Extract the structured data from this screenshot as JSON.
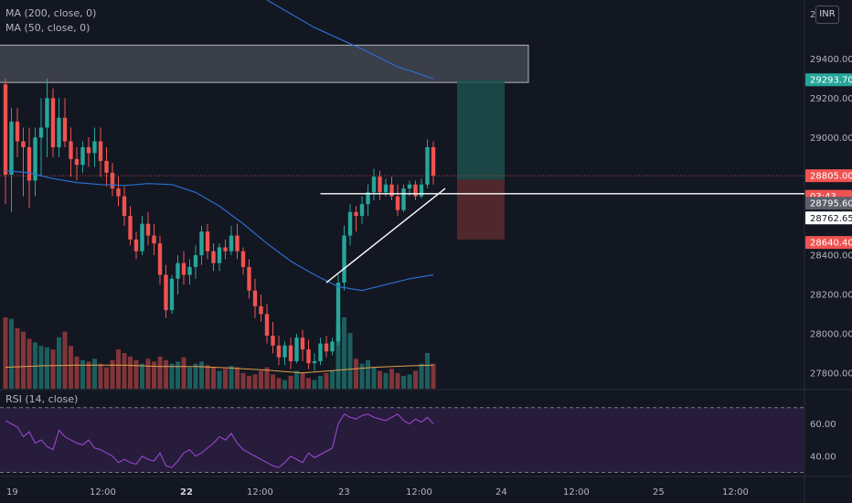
{
  "currency_label": "INR",
  "indicators": {
    "ma200": "MA (200, close, 0)",
    "ma50": "MA (50, close, 0)",
    "rsi": "RSI (14, close)"
  },
  "colors": {
    "background": "#131722",
    "up": "#26a69a",
    "down": "#ef5350",
    "ma50_line": "#2a6fcf",
    "volume_ma": "#e6a04a",
    "rsi_line": "#a24bd9",
    "rsi_band": "#2a1d3f",
    "resistance_zone": "#5d606b",
    "trendline": "#ffffff",
    "long_target": "#1e4f4c",
    "long_stop": "#5c2a2e"
  },
  "chart_data": {
    "type": "candlestick",
    "price_axis": {
      "ticks": [
        29400.0,
        29200.0,
        29000.0,
        28800.0,
        28600.0,
        28400.0,
        28200.0,
        28000.0,
        27800.0
      ],
      "top_label": "29600",
      "range": [
        27720,
        29700
      ]
    },
    "rsi_axis": {
      "ticks": [
        60.0,
        40.0
      ],
      "range": [
        28,
        80
      ],
      "band": [
        30,
        70
      ]
    },
    "x_labels": [
      "19",
      "12:00",
      "22",
      "12:00",
      "23",
      "12:00",
      "24",
      "12:00",
      "25",
      "12:00"
    ],
    "x_labels_bold": [
      false,
      false,
      true,
      false,
      false,
      false,
      false,
      false,
      false,
      false
    ],
    "price_tags": [
      {
        "text": "29293.70",
        "price": 29293.7,
        "bg": "#26a69a",
        "fg": "#ffffff"
      },
      {
        "text": "28805.00",
        "price": 28805.0,
        "bg": "#ef5350",
        "fg": "#ffffff"
      },
      {
        "text": "03:43",
        "price": 28700,
        "bg": "#ef5350",
        "fg": "#ffffff"
      },
      {
        "text": "28795.60",
        "price": 28665,
        "bg": "#5d606b",
        "fg": "#ffffff"
      },
      {
        "text": "28762.65",
        "price": 28590,
        "bg": "#ffffff",
        "fg": "#131722"
      },
      {
        "text": "28640.40",
        "price": 28465,
        "bg": "#ef5350",
        "fg": "#ffffff"
      }
    ],
    "candles": [
      [
        29270,
        29300,
        28660,
        28810
      ],
      [
        28810,
        29150,
        28620,
        29080
      ],
      [
        29080,
        29150,
        28900,
        28980
      ],
      [
        28980,
        29050,
        28700,
        28950
      ],
      [
        28950,
        29050,
        28640,
        28780
      ],
      [
        28780,
        29050,
        28700,
        29000
      ],
      [
        29000,
        29200,
        28800,
        29050
      ],
      [
        29050,
        29300,
        28900,
        29200
      ],
      [
        29200,
        29250,
        28900,
        28950
      ],
      [
        28950,
        29200,
        28900,
        29100
      ],
      [
        29100,
        29200,
        28950,
        28980
      ],
      [
        28980,
        29050,
        28800,
        28890
      ],
      [
        28890,
        28950,
        28780,
        28860
      ],
      [
        28860,
        28980,
        28820,
        28950
      ],
      [
        28950,
        29000,
        28850,
        28920
      ],
      [
        28920,
        29050,
        28850,
        28980
      ],
      [
        28980,
        29050,
        28800,
        28880
      ],
      [
        28880,
        28950,
        28750,
        28820
      ],
      [
        28820,
        28870,
        28700,
        28740
      ],
      [
        28740,
        28800,
        28650,
        28700
      ],
      [
        28700,
        28750,
        28550,
        28600
      ],
      [
        28600,
        28650,
        28450,
        28480
      ],
      [
        28480,
        28520,
        28380,
        28420
      ],
      [
        28420,
        28600,
        28400,
        28560
      ],
      [
        28560,
        28620,
        28450,
        28500
      ],
      [
        28500,
        28560,
        28400,
        28460
      ],
      [
        28460,
        28500,
        28250,
        28300
      ],
      [
        28300,
        28350,
        28080,
        28120
      ],
      [
        28120,
        28300,
        28100,
        28280
      ],
      [
        28280,
        28400,
        28200,
        28360
      ],
      [
        28360,
        28420,
        28250,
        28300
      ],
      [
        28300,
        28380,
        28250,
        28340
      ],
      [
        28340,
        28450,
        28280,
        28400
      ],
      [
        28400,
        28550,
        28350,
        28520
      ],
      [
        28520,
        28560,
        28380,
        28420
      ],
      [
        28420,
        28460,
        28320,
        28360
      ],
      [
        28360,
        28460,
        28320,
        28440
      ],
      [
        28440,
        28480,
        28380,
        28420
      ],
      [
        28420,
        28550,
        28400,
        28500
      ],
      [
        28500,
        28560,
        28380,
        28420
      ],
      [
        28420,
        28440,
        28300,
        28340
      ],
      [
        28340,
        28380,
        28180,
        28220
      ],
      [
        28220,
        28280,
        28080,
        28140
      ],
      [
        28140,
        28200,
        28060,
        28100
      ],
      [
        28100,
        28150,
        27950,
        27990
      ],
      [
        27990,
        28060,
        27900,
        27940
      ],
      [
        27940,
        27990,
        27840,
        27880
      ],
      [
        27880,
        27960,
        27840,
        27940
      ],
      [
        27940,
        27980,
        27820,
        27860
      ],
      [
        27860,
        28000,
        27850,
        27980
      ],
      [
        27980,
        28020,
        27860,
        27920
      ],
      [
        27920,
        27970,
        27820,
        27850
      ],
      [
        27850,
        27900,
        27810,
        27860
      ],
      [
        27860,
        27980,
        27840,
        27950
      ],
      [
        27950,
        27990,
        27880,
        27910
      ],
      [
        27910,
        27980,
        27890,
        27960
      ],
      [
        27960,
        28300,
        27940,
        28260
      ],
      [
        28260,
        28550,
        28220,
        28500
      ],
      [
        28500,
        28660,
        28450,
        28620
      ],
      [
        28620,
        28650,
        28520,
        28600
      ],
      [
        28600,
        28700,
        28560,
        28660
      ],
      [
        28660,
        28760,
        28600,
        28720
      ],
      [
        28720,
        28840,
        28680,
        28800
      ],
      [
        28800,
        28830,
        28680,
        28720
      ],
      [
        28720,
        28790,
        28700,
        28760
      ],
      [
        28760,
        28800,
        28680,
        28700
      ],
      [
        28700,
        28760,
        28600,
        28630
      ],
      [
        28630,
        28760,
        28620,
        28740
      ],
      [
        28740,
        28780,
        28700,
        28760
      ],
      [
        28760,
        28780,
        28680,
        28700
      ],
      [
        28700,
        28790,
        28690,
        28760
      ],
      [
        28760,
        28990,
        28740,
        28950
      ],
      [
        28950,
        28980,
        28760,
        28805
      ]
    ],
    "volumes": [
      100,
      98,
      85,
      80,
      70,
      65,
      60,
      58,
      55,
      72,
      80,
      60,
      45,
      40,
      38,
      42,
      35,
      30,
      40,
      55,
      50,
      45,
      40,
      35,
      42,
      38,
      45,
      40,
      35,
      38,
      44,
      30,
      35,
      38,
      33,
      30,
      25,
      28,
      32,
      30,
      22,
      18,
      20,
      25,
      30,
      20,
      15,
      12,
      18,
      25,
      22,
      15,
      12,
      18,
      22,
      25,
      90,
      100,
      78,
      42,
      35,
      40,
      30,
      25,
      22,
      28,
      22,
      18,
      20,
      25,
      35,
      50,
      35
    ],
    "ma50_price": [
      [
        0,
        28830
      ],
      [
        4,
        28820
      ],
      [
        8,
        28790
      ],
      [
        12,
        28770
      ],
      [
        16,
        28760
      ],
      [
        20,
        28755
      ],
      [
        24,
        28765
      ],
      [
        28,
        28760
      ],
      [
        32,
        28720
      ],
      [
        36,
        28650
      ],
      [
        40,
        28560
      ],
      [
        44,
        28460
      ],
      [
        48,
        28370
      ],
      [
        52,
        28300
      ],
      [
        56,
        28240
      ],
      [
        60,
        28220
      ],
      [
        64,
        28250
      ],
      [
        68,
        28280
      ],
      [
        72,
        28300
      ]
    ],
    "ma200_price": [
      [
        44,
        29700
      ],
      [
        52,
        29560
      ],
      [
        60,
        29450
      ],
      [
        66,
        29360
      ],
      [
        72,
        29300
      ]
    ],
    "volume_ma": [
      [
        0,
        30
      ],
      [
        6,
        32
      ],
      [
        12,
        33
      ],
      [
        20,
        33
      ],
      [
        26,
        31
      ],
      [
        32,
        31
      ],
      [
        38,
        29
      ],
      [
        44,
        26
      ],
      [
        50,
        22
      ],
      [
        56,
        26
      ],
      [
        62,
        30
      ],
      [
        68,
        32
      ],
      [
        72,
        33
      ]
    ],
    "rsi": [
      62,
      60,
      58,
      52,
      55,
      48,
      50,
      46,
      44,
      56,
      52,
      50,
      48,
      47,
      50,
      45,
      44,
      42,
      40,
      36,
      38,
      36,
      35,
      40,
      38,
      37,
      42,
      34,
      33,
      37,
      42,
      44,
      40,
      42,
      45,
      48,
      52,
      50,
      54,
      48,
      44,
      42,
      40,
      38,
      36,
      34,
      33,
      36,
      40,
      38,
      36,
      42,
      39,
      41,
      43,
      45,
      60,
      66,
      64,
      63,
      65,
      66,
      64,
      63,
      62,
      64,
      66,
      62,
      60,
      63,
      61,
      64,
      60
    ],
    "resistance_zone": {
      "x_start_index": -1,
      "x_end_index": 88,
      "price_low": 29280,
      "price_high": 29470
    },
    "horizontal_line": {
      "x_start_index": 53,
      "x_end_index": 130,
      "price": 28713
    },
    "trendline": {
      "from": [
        54,
        28260
      ],
      "to": [
        74,
        28740
      ]
    },
    "position": {
      "x_start_index": 76,
      "x_end_index": 84,
      "entry": 28785,
      "target": 29293.7,
      "stop": 28480
    }
  }
}
